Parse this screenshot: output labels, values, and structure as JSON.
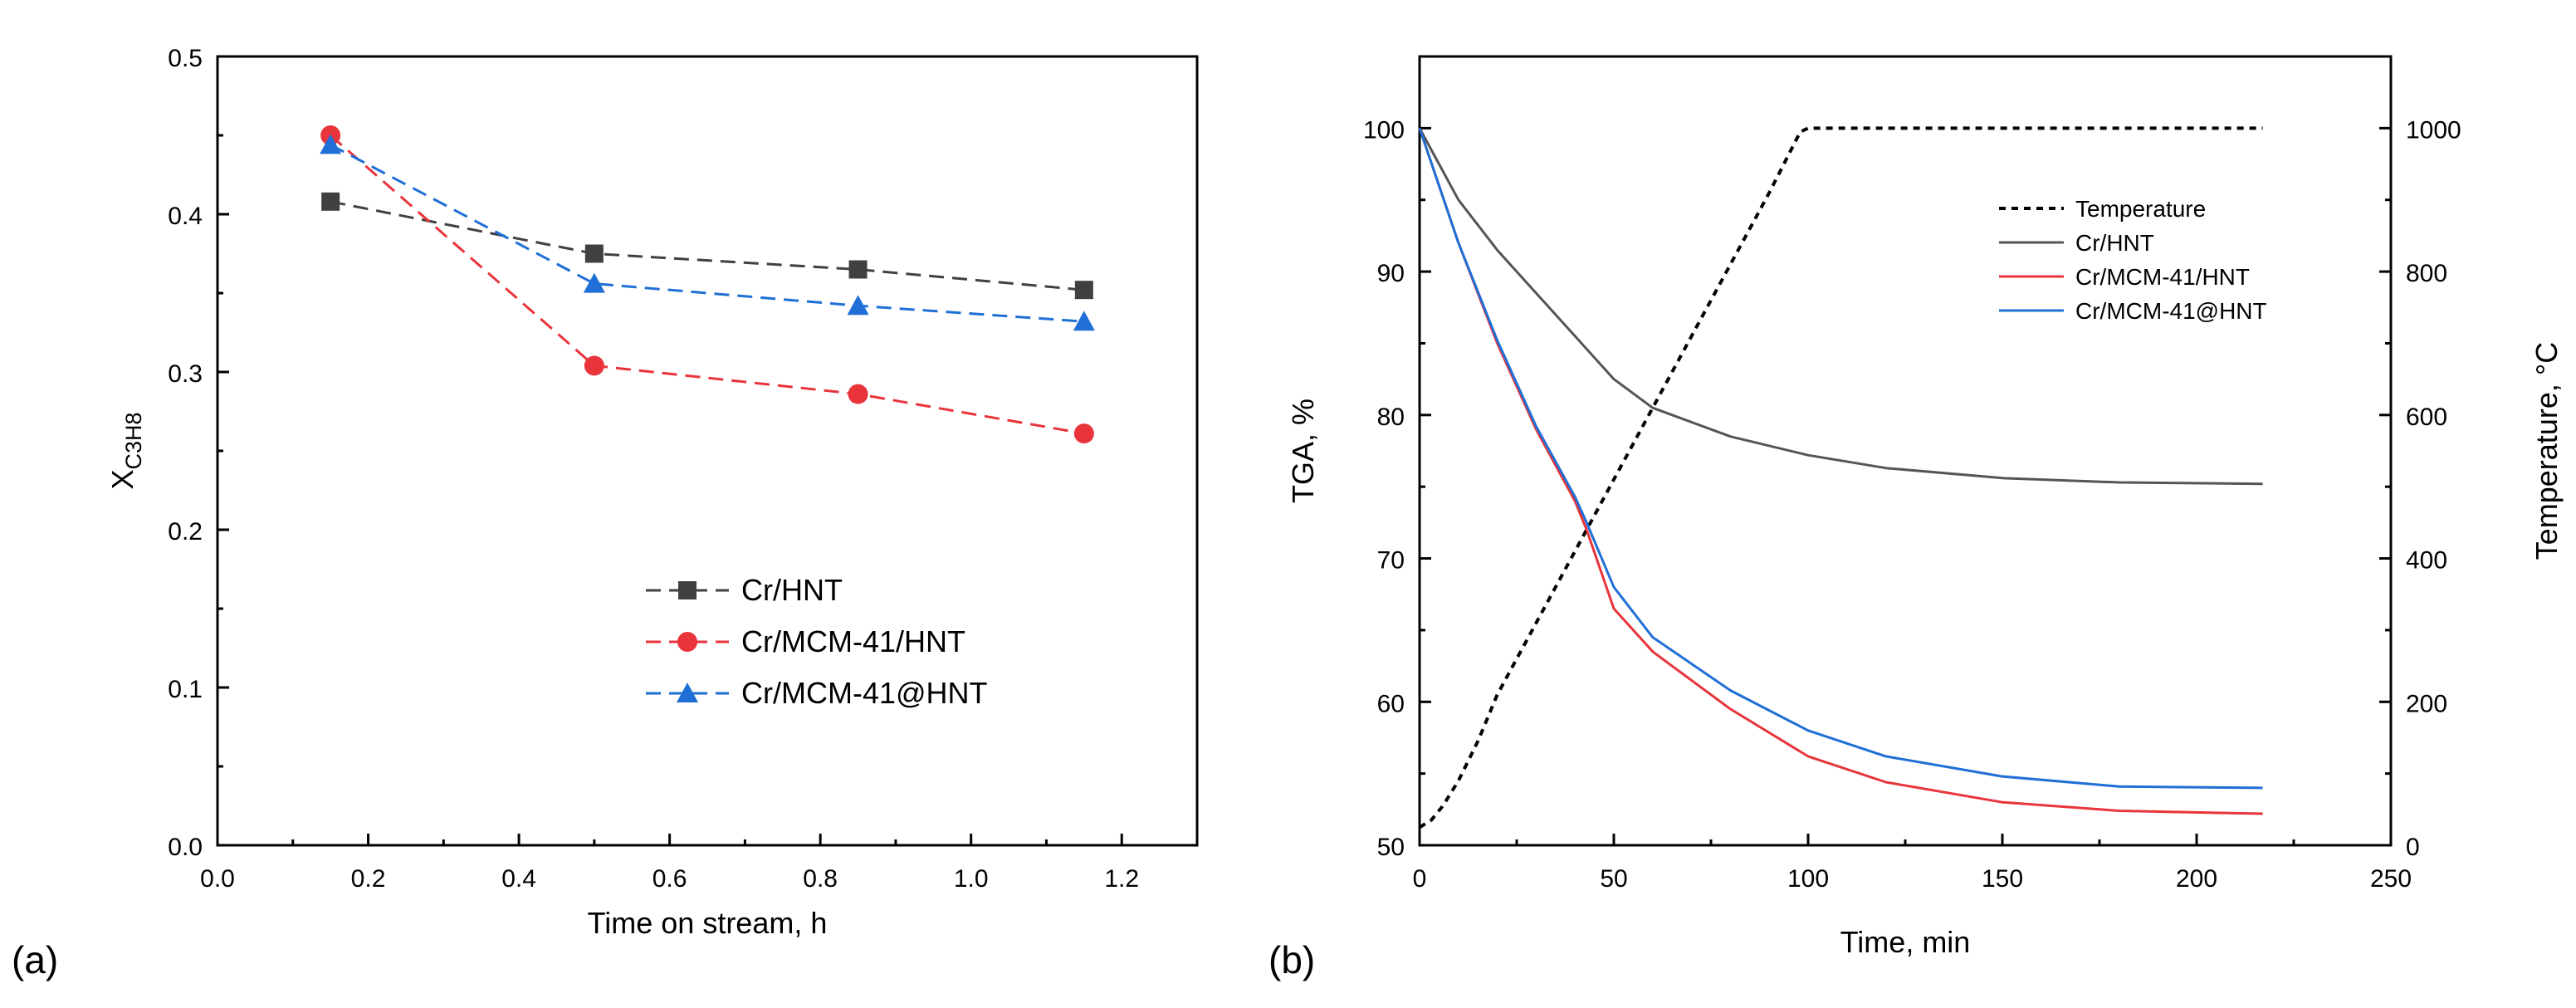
{
  "panel_a_label": "(a)",
  "panel_b_label": "(b)",
  "chart_data": [
    {
      "type": "line",
      "panel": "(a)",
      "xlabel": "Time on stream, h",
      "ylabel_main": "X",
      "ylabel_sub": "C3H8",
      "xlim": [
        0.0,
        1.3
      ],
      "ylim": [
        0.0,
        0.5
      ],
      "xticks": [
        "0.0",
        "0.2",
        "0.4",
        "0.6",
        "0.8",
        "1.0",
        "1.2"
      ],
      "yticks": [
        "0.0",
        "0.1",
        "0.2",
        "0.3",
        "0.4",
        "0.5"
      ],
      "legend_position": "center-right",
      "x": [
        0.15,
        0.5,
        0.85,
        1.15
      ],
      "series": [
        {
          "name": "Cr/HNT",
          "color": "#404040",
          "marker": "square",
          "line": "dashed",
          "values": [
            0.408,
            0.375,
            0.365,
            0.352
          ]
        },
        {
          "name": "Cr/MCM-41/HNT",
          "color": "#e8343a",
          "marker": "circle",
          "line": "dashed",
          "values": [
            0.45,
            0.304,
            0.286,
            0.261
          ]
        },
        {
          "name": "Cr/MCM-41@HNT",
          "color": "#1f6fd6",
          "marker": "triangle",
          "line": "dashed",
          "values": [
            0.444,
            0.356,
            0.342,
            0.332
          ]
        }
      ]
    },
    {
      "type": "line",
      "panel": "(b)",
      "xlabel": "Time, min",
      "ylabel": "TGA, %",
      "ylabel_right": "Temperature, °C",
      "xlim": [
        0,
        250
      ],
      "ylim": [
        50,
        105
      ],
      "ylim_right": [
        0,
        1100
      ],
      "xticks": [
        "0",
        "50",
        "100",
        "150",
        "200",
        "250"
      ],
      "yticks": [
        "50",
        "60",
        "70",
        "80",
        "90",
        "100"
      ],
      "yticks_right": [
        "0",
        "200",
        "400",
        "600",
        "800",
        "1000"
      ],
      "legend_position": "top-right",
      "series": [
        {
          "name": "Temperature",
          "axis": "right",
          "color": "#000000",
          "line": "dotted",
          "x": [
            0,
            3,
            6,
            10,
            15,
            20,
            30,
            40,
            50,
            60,
            70,
            80,
            90,
            98,
            100,
            150,
            217
          ],
          "values": [
            25,
            35,
            55,
            90,
            145,
            210,
            310,
            410,
            510,
            610,
            710,
            810,
            910,
            995,
            1000,
            1000,
            1000
          ]
        },
        {
          "name": "Cr/HNT",
          "axis": "left",
          "color": "#555555",
          "line": "solid",
          "x": [
            0,
            5,
            10,
            20,
            30,
            40,
            50,
            60,
            80,
            100,
            120,
            150,
            180,
            217
          ],
          "values": [
            100,
            97.5,
            95,
            91.5,
            88.5,
            85.5,
            82.5,
            80.5,
            78.5,
            77.2,
            76.3,
            75.6,
            75.3,
            75.2
          ]
        },
        {
          "name": "Cr/MCM-41/HNT",
          "axis": "left",
          "color": "#e8343a",
          "line": "solid",
          "x": [
            0,
            5,
            10,
            20,
            30,
            40,
            43,
            50,
            60,
            80,
            100,
            120,
            150,
            180,
            217
          ],
          "values": [
            100,
            96,
            92,
            85,
            79,
            74,
            72,
            66.5,
            63.5,
            59.5,
            56.2,
            54.4,
            53,
            52.4,
            52.2
          ]
        },
        {
          "name": "Cr/MCM-41@HNT",
          "axis": "left",
          "color": "#1f6fd6",
          "line": "solid",
          "x": [
            0,
            5,
            10,
            20,
            30,
            40,
            43,
            50,
            60,
            80,
            100,
            120,
            150,
            180,
            217
          ],
          "values": [
            100,
            96,
            92,
            85.2,
            79.2,
            74.3,
            72.5,
            68,
            64.5,
            60.8,
            58,
            56.2,
            54.8,
            54.1,
            54
          ]
        }
      ]
    }
  ]
}
